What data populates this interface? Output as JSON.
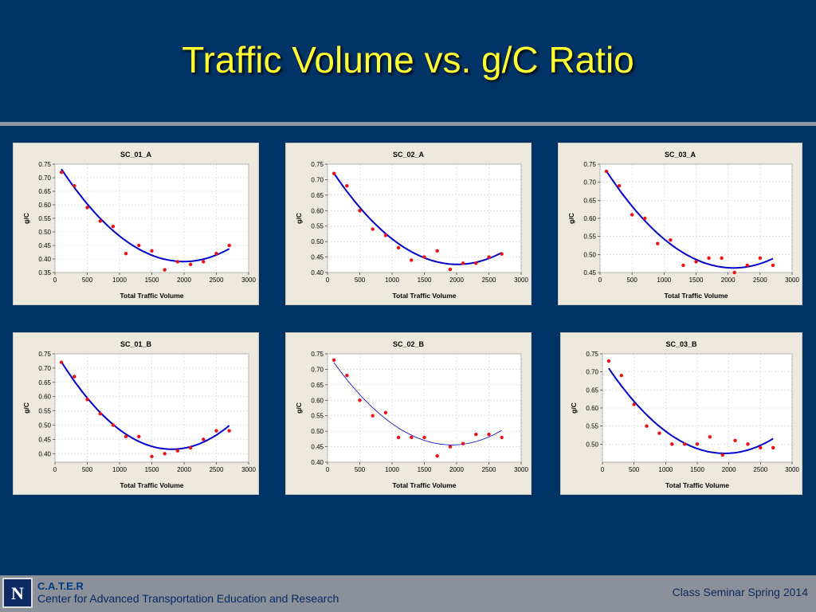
{
  "slide": {
    "title": "Traffic Volume vs. g/C Ratio"
  },
  "footer": {
    "logo_letter": "N",
    "org_short": "C.A.T.E.R",
    "org_long": "Center for Advanced Transportation Education and Research",
    "event": "Class Seminar Spring 2014"
  },
  "colors": {
    "background": "#003366",
    "title": "#ffff33",
    "points": "#ee1111",
    "fit_line": "#0000cc",
    "panel": "#ede9df"
  },
  "chart_data": [
    {
      "type": "scatter",
      "title": "SC_01_A",
      "xlabel": "Total Traffic Volume",
      "ylabel": "g/C",
      "xlim": [
        0,
        3000
      ],
      "ylim": [
        0.35,
        0.75
      ],
      "xticks": [
        0,
        500,
        1000,
        1500,
        2000,
        2500,
        3000
      ],
      "yticks": [
        0.35,
        0.4,
        0.45,
        0.5,
        0.55,
        0.6,
        0.65,
        0.7,
        0.75
      ],
      "grid": true,
      "series": [
        {
          "x": [
            100,
            300,
            500,
            700,
            900,
            1100,
            1300,
            1500,
            1700,
            1900,
            2100,
            2300,
            2500,
            2700
          ],
          "y": [
            0.72,
            0.67,
            0.59,
            0.54,
            0.52,
            0.42,
            0.45,
            0.43,
            0.36,
            0.39,
            0.38,
            0.39,
            0.42,
            0.45
          ]
        }
      ],
      "fit": {
        "kind": "quadratic",
        "line": "thick",
        "x": [
          100,
          1000,
          1950,
          2700
        ],
        "y": [
          0.73,
          0.49,
          0.385,
          0.44
        ]
      }
    },
    {
      "type": "scatter",
      "title": "SC_02_A",
      "xlabel": "Total Traffic Volume",
      "ylabel": "g/C",
      "xlim": [
        0,
        3000
      ],
      "ylim": [
        0.4,
        0.75
      ],
      "xticks": [
        0,
        500,
        1000,
        1500,
        2000,
        2500,
        3000
      ],
      "yticks": [
        0.4,
        0.45,
        0.5,
        0.55,
        0.6,
        0.65,
        0.7,
        0.75
      ],
      "grid": true,
      "series": [
        {
          "x": [
            100,
            300,
            500,
            700,
            900,
            1100,
            1300,
            1500,
            1700,
            1900,
            2100,
            2300,
            2500,
            2700
          ],
          "y": [
            0.72,
            0.68,
            0.6,
            0.54,
            0.52,
            0.48,
            0.44,
            0.45,
            0.47,
            0.41,
            0.43,
            0.43,
            0.45,
            0.46
          ]
        }
      ],
      "fit": {
        "kind": "quadratic",
        "line": "thick",
        "x": [
          100,
          1000,
          2000,
          2700
        ],
        "y": [
          0.72,
          0.51,
          0.425,
          0.465
        ]
      }
    },
    {
      "type": "scatter",
      "title": "SC_03_A",
      "xlabel": "Total Traffic Volume",
      "ylabel": "g/C",
      "xlim": [
        0,
        3000
      ],
      "ylim": [
        0.45,
        0.75
      ],
      "xticks": [
        0,
        500,
        1000,
        1500,
        2000,
        2500,
        3000
      ],
      "yticks": [
        0.45,
        0.5,
        0.55,
        0.6,
        0.65,
        0.7,
        0.75
      ],
      "grid": true,
      "series": [
        {
          "x": [
            100,
            300,
            500,
            700,
            900,
            1100,
            1300,
            1500,
            1700,
            1900,
            2100,
            2300,
            2500,
            2700
          ],
          "y": [
            0.73,
            0.69,
            0.61,
            0.6,
            0.53,
            0.54,
            0.47,
            0.48,
            0.49,
            0.49,
            0.45,
            0.47,
            0.49,
            0.47
          ]
        }
      ],
      "fit": {
        "kind": "quadratic",
        "line": "thick",
        "x": [
          100,
          1000,
          2100,
          2700
        ],
        "y": [
          0.73,
          0.545,
          0.46,
          0.49
        ]
      }
    },
    {
      "type": "scatter",
      "title": "SC_01_B",
      "xlabel": "Total Traffic Volume",
      "ylabel": "g/C",
      "xlim": [
        0,
        3000
      ],
      "ylim": [
        0.37,
        0.75
      ],
      "xticks": [
        0,
        500,
        1000,
        1500,
        2000,
        2500,
        3000
      ],
      "yticks": [
        0.4,
        0.45,
        0.5,
        0.55,
        0.6,
        0.65,
        0.7,
        0.75
      ],
      "grid": true,
      "series": [
        {
          "x": [
            100,
            300,
            500,
            700,
            900,
            1100,
            1300,
            1500,
            1700,
            1900,
            2100,
            2300,
            2500,
            2700
          ],
          "y": [
            0.72,
            0.67,
            0.59,
            0.54,
            0.5,
            0.46,
            0.46,
            0.39,
            0.4,
            0.41,
            0.42,
            0.45,
            0.48,
            0.48
          ]
        }
      ],
      "fit": {
        "kind": "quadratic",
        "line": "thick",
        "x": [
          100,
          1000,
          1750,
          2700
        ],
        "y": [
          0.72,
          0.49,
          0.41,
          0.5
        ]
      }
    },
    {
      "type": "scatter",
      "title": "SC_02_B",
      "xlabel": "Total Traffic Volume",
      "ylabel": "g/C",
      "xlim": [
        0,
        3000
      ],
      "ylim": [
        0.4,
        0.75
      ],
      "xticks": [
        0,
        500,
        1000,
        1500,
        2000,
        2500,
        3000
      ],
      "yticks": [
        0.4,
        0.45,
        0.5,
        0.55,
        0.6,
        0.65,
        0.7,
        0.75
      ],
      "grid": true,
      "series": [
        {
          "x": [
            100,
            300,
            500,
            700,
            900,
            1100,
            1300,
            1500,
            1700,
            1900,
            2100,
            2300,
            2500,
            2700
          ],
          "y": [
            0.73,
            0.68,
            0.6,
            0.55,
            0.56,
            0.48,
            0.48,
            0.48,
            0.42,
            0.45,
            0.46,
            0.49,
            0.49,
            0.48
          ]
        }
      ],
      "fit": {
        "kind": "quadratic",
        "line": "thin",
        "x": [
          100,
          1000,
          1900,
          2700
        ],
        "y": [
          0.72,
          0.53,
          0.45,
          0.505
        ]
      }
    },
    {
      "type": "scatter",
      "title": "SC_03_B",
      "xlabel": "Total Traffic Volume",
      "ylabel": "g/C",
      "xlim": [
        0,
        3000
      ],
      "ylim": [
        0.45,
        0.75
      ],
      "xticks": [
        0,
        500,
        1000,
        1500,
        2000,
        2500,
        3000
      ],
      "yticks": [
        0.5,
        0.55,
        0.6,
        0.65,
        0.7,
        0.75
      ],
      "grid": true,
      "series": [
        {
          "x": [
            100,
            300,
            500,
            700,
            900,
            1100,
            1300,
            1500,
            1700,
            1900,
            2100,
            2300,
            2500,
            2700
          ],
          "y": [
            0.73,
            0.69,
            0.61,
            0.55,
            0.53,
            0.5,
            0.5,
            0.5,
            0.52,
            0.47,
            0.51,
            0.5,
            0.49,
            0.49
          ]
        }
      ],
      "fit": {
        "kind": "quadratic",
        "line": "thick",
        "x": [
          100,
          1000,
          1900,
          2700
        ],
        "y": [
          0.71,
          0.535,
          0.475,
          0.515
        ]
      }
    }
  ]
}
